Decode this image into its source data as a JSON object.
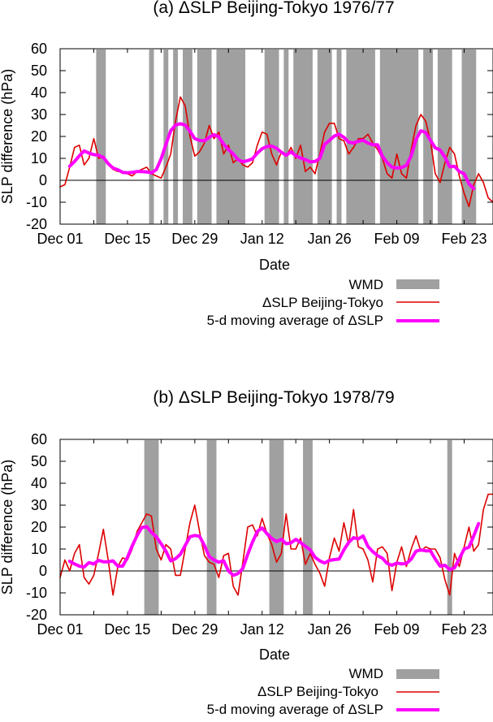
{
  "chart_data": [
    {
      "type": "line",
      "title": "(a) ΔSLP Beijing-Tokyo 1976/77",
      "xlabel": "Date",
      "ylabel": "SLP difference (hPa)",
      "xlim": [
        0,
        90
      ],
      "ylim": [
        -20,
        60
      ],
      "x_ticks": [
        {
          "x": 0,
          "label": "Dec 01"
        },
        {
          "x": 14,
          "label": "Dec 15"
        },
        {
          "x": 28,
          "label": "Dec 29"
        },
        {
          "x": 42,
          "label": "Jan 12"
        },
        {
          "x": 56,
          "label": "Jan 26"
        },
        {
          "x": 70,
          "label": "Feb 09"
        },
        {
          "x": 84,
          "label": "Feb 23"
        }
      ],
      "y_ticks": [
        -20,
        -10,
        0,
        10,
        20,
        30,
        40,
        50,
        60
      ],
      "zero_line": 0,
      "legend_position": "bottom-right",
      "legend": [
        {
          "label": "WMD",
          "color": "#a0a0a0",
          "kind": "bar"
        },
        {
          "label": "ΔSLP Beijing-Tokyo",
          "color": "#dd0000",
          "kind": "line"
        },
        {
          "label": "5-d moving average of ΔSLP",
          "color": "#ff00ff",
          "kind": "thick-line"
        }
      ],
      "wmd_shading": [
        [
          7.5,
          9.5
        ],
        [
          18.5,
          19.5
        ],
        [
          21.5,
          22.5
        ],
        [
          23.5,
          24.5
        ],
        [
          25.5,
          27.5
        ],
        [
          28.5,
          31.5
        ],
        [
          32.5,
          38.5
        ],
        [
          42.5,
          45.5
        ],
        [
          46.5,
          47.5
        ],
        [
          48.5,
          52.5
        ],
        [
          53.5,
          56.5
        ],
        [
          57.5,
          58.5
        ],
        [
          59.5,
          65.5
        ],
        [
          66.5,
          74.5
        ],
        [
          75.5,
          77.5
        ],
        [
          78.5,
          81.5
        ],
        [
          83.5,
          86.5
        ]
      ],
      "series": [
        {
          "name": "ΔSLP Beijing-Tokyo",
          "color": "#dd0000",
          "x": [
            0,
            1,
            2,
            3,
            4,
            5,
            6,
            7,
            8,
            9,
            10,
            11,
            12,
            13,
            14,
            15,
            16,
            17,
            18,
            19,
            20,
            21,
            22,
            23,
            24,
            25,
            26,
            27,
            28,
            29,
            30,
            31,
            32,
            33,
            34,
            35,
            36,
            37,
            38,
            39,
            40,
            41,
            42,
            43,
            44,
            45,
            46,
            47,
            48,
            49,
            50,
            51,
            52,
            53,
            54,
            55,
            56,
            57,
            58,
            59,
            60,
            61,
            62,
            63,
            64,
            65,
            66,
            67,
            68,
            69,
            70,
            71,
            72,
            73,
            74,
            75,
            76,
            77,
            78,
            79,
            80,
            81,
            82,
            83,
            84,
            85,
            86,
            87,
            88,
            89,
            90
          ],
          "y": [
            -3,
            -2,
            6,
            15,
            16,
            7,
            10,
            19,
            10,
            11,
            8,
            5,
            4,
            4,
            3,
            2,
            4,
            5,
            6,
            3,
            2,
            1,
            6,
            12,
            27,
            38,
            34,
            20,
            11,
            13,
            17,
            25,
            19,
            22,
            12,
            16,
            8,
            10,
            7,
            6,
            8,
            16,
            22,
            21,
            12,
            7,
            13,
            11,
            15,
            10,
            16,
            4,
            6,
            3,
            12,
            22,
            26,
            26,
            19,
            18,
            12,
            15,
            19,
            19,
            21,
            17,
            14,
            10,
            3,
            1,
            12,
            3,
            1,
            14,
            25,
            30,
            27,
            18,
            3,
            -1,
            8,
            15,
            12,
            2,
            -6,
            -12,
            -2,
            3,
            -1,
            -8,
            -10
          ]
        },
        {
          "name": "5-d moving average of ΔSLP",
          "color": "#ff00ff",
          "x": [
            2,
            3,
            4,
            5,
            6,
            7,
            8,
            9,
            10,
            11,
            12,
            13,
            14,
            15,
            16,
            17,
            18,
            19,
            20,
            21,
            22,
            23,
            24,
            25,
            26,
            27,
            28,
            29,
            30,
            31,
            32,
            33,
            34,
            35,
            36,
            37,
            38,
            39,
            40,
            41,
            42,
            43,
            44,
            45,
            46,
            47,
            48,
            49,
            50,
            51,
            52,
            53,
            54,
            55,
            56,
            57,
            58,
            59,
            60,
            61,
            62,
            63,
            64,
            65,
            66,
            67,
            68,
            69,
            70,
            71,
            72,
            73,
            74,
            75,
            76,
            77,
            78,
            79,
            80,
            81,
            82,
            83,
            84,
            85,
            86
          ],
          "y": [
            6.4,
            8.6,
            11.2,
            13.4,
            12.4,
            11.7,
            11.4,
            10.4,
            7.6,
            5.6,
            4.8,
            3.6,
            3.4,
            3.6,
            4.0,
            4.0,
            3.8,
            3.4,
            4.8,
            9.8,
            16.4,
            22.6,
            25.2,
            25.8,
            25.2,
            22.4,
            19.0,
            18.2,
            18.0,
            19.6,
            20.8,
            19.8,
            16.4,
            14.0,
            12.0,
            9.4,
            8.4,
            9.0,
            9.8,
            12.4,
            14.4,
            15.4,
            15.6,
            14.6,
            12.8,
            11.4,
            13.0,
            11.2,
            10.2,
            9.4,
            8.4,
            8.6,
            10.0,
            16.4,
            18.2,
            20.2,
            21.0,
            19.6,
            17.4,
            17.0,
            17.8,
            18.2,
            17.0,
            16.2,
            16.2,
            11.0,
            8.0,
            6.0,
            5.6,
            5.8,
            6.8,
            11.2,
            18.6,
            22.6,
            21.8,
            18.2,
            14.8,
            13.8,
            10.6,
            6.2,
            6.4,
            4.0,
            3.0,
            -1.6,
            -3.8
          ]
        }
      ]
    },
    {
      "type": "line",
      "title": "(b) ΔSLP Beijing-Tokyo 1978/79",
      "xlabel": "Date",
      "ylabel": "SLP difference (hPa)",
      "xlim": [
        0,
        90
      ],
      "ylim": [
        -20,
        60
      ],
      "x_ticks": [
        {
          "x": 0,
          "label": "Dec 01"
        },
        {
          "x": 14,
          "label": "Dec 15"
        },
        {
          "x": 28,
          "label": "Dec 29"
        },
        {
          "x": 42,
          "label": "Jan 12"
        },
        {
          "x": 56,
          "label": "Jan 26"
        },
        {
          "x": 70,
          "label": "Feb 09"
        },
        {
          "x": 84,
          "label": "Feb 23"
        }
      ],
      "y_ticks": [
        -20,
        -10,
        0,
        10,
        20,
        30,
        40,
        50,
        60
      ],
      "zero_line": 0,
      "legend_position": "bottom-right",
      "legend": [
        {
          "label": "WMD",
          "color": "#a0a0a0",
          "kind": "bar"
        },
        {
          "label": "ΔSLP Beijing-Tokyo",
          "color": "#dd0000",
          "kind": "line"
        },
        {
          "label": "5-d moving average of ΔSLP",
          "color": "#ff00ff",
          "kind": "thick-line"
        }
      ],
      "wmd_shading": [
        [
          17.5,
          20.5
        ],
        [
          30.5,
          32.5
        ],
        [
          43.5,
          46.5
        ],
        [
          50.5,
          52.5
        ],
        [
          80.5,
          81.5
        ]
      ],
      "series": [
        {
          "name": "ΔSLP Beijing-Tokyo",
          "color": "#dd0000",
          "x": [
            0,
            1,
            2,
            3,
            4,
            5,
            6,
            7,
            8,
            9,
            10,
            11,
            12,
            13,
            14,
            15,
            16,
            17,
            18,
            19,
            20,
            21,
            22,
            23,
            24,
            25,
            26,
            27,
            28,
            29,
            30,
            31,
            32,
            33,
            34,
            35,
            36,
            37,
            38,
            39,
            40,
            41,
            42,
            43,
            44,
            45,
            46,
            47,
            48,
            49,
            50,
            51,
            52,
            53,
            54,
            55,
            56,
            57,
            58,
            59,
            60,
            61,
            62,
            63,
            64,
            65,
            66,
            67,
            68,
            69,
            70,
            71,
            72,
            73,
            74,
            75,
            76,
            77,
            78,
            79,
            80,
            81,
            82,
            83,
            84,
            85,
            86,
            87,
            88,
            89,
            90
          ],
          "y": [
            -3,
            5,
            0,
            8,
            12,
            -3,
            -6,
            -2,
            8,
            19,
            5,
            -11,
            2,
            6,
            5,
            10,
            18,
            22,
            26,
            25,
            10,
            5,
            12,
            10,
            -2,
            -2,
            10,
            22,
            30,
            18,
            7,
            4,
            3,
            -3,
            7,
            8,
            -7,
            -11,
            4,
            20,
            21,
            16,
            24,
            17,
            12,
            4,
            8,
            26,
            10,
            10,
            15,
            3,
            8,
            3,
            -1,
            -7,
            6,
            15,
            9,
            22,
            12,
            28,
            11,
            10,
            5,
            -5,
            10,
            11,
            8,
            -9,
            4,
            11,
            2,
            10,
            16,
            9,
            11,
            10,
            10,
            6,
            -4,
            -11,
            8,
            2,
            11,
            20,
            9,
            12,
            28,
            35,
            35
          ]
        },
        {
          "name": "5-d moving average of ΔSLP",
          "color": "#ff00ff",
          "x": [
            2,
            3,
            4,
            5,
            6,
            7,
            8,
            9,
            10,
            11,
            12,
            13,
            14,
            15,
            16,
            17,
            18,
            19,
            20,
            21,
            22,
            23,
            24,
            25,
            26,
            27,
            28,
            29,
            30,
            31,
            32,
            33,
            34,
            35,
            36,
            37,
            38,
            39,
            40,
            41,
            42,
            43,
            44,
            45,
            46,
            47,
            48,
            49,
            50,
            51,
            52,
            53,
            54,
            55,
            56,
            57,
            58,
            59,
            60,
            61,
            62,
            63,
            64,
            65,
            66,
            67,
            68,
            69,
            70,
            71,
            72,
            73,
            74,
            75,
            76,
            77,
            78,
            79,
            80,
            81,
            82,
            83,
            84,
            85,
            86,
            87
          ],
          "y": [
            4.4,
            3.2,
            2.2,
            1.8,
            3.8,
            3.2,
            4.8,
            4.2,
            4.2,
            4.6,
            2.2,
            2.2,
            6.2,
            11.4,
            16.2,
            19.8,
            20.2,
            17.6,
            15.6,
            12.4,
            9.0,
            4.6,
            5.6,
            7.6,
            11.6,
            15.6,
            16.2,
            15.8,
            11.6,
            6.6,
            5.0,
            4.0,
            4.6,
            0.0,
            -2.0,
            -1.2,
            1.2,
            7.6,
            13.2,
            18.0,
            19.6,
            17.0,
            14.8,
            13.4,
            14.4,
            12.4,
            12.8,
            14.4,
            13.0,
            11.2,
            9.6,
            6.2,
            4.6,
            3.6,
            4.8,
            5.2,
            5.4,
            9.6,
            13.0,
            15.2,
            14.6,
            16.0,
            11.2,
            8.8,
            7.0,
            5.8,
            3.4,
            2.6,
            3.6,
            3.2,
            3.4,
            5.4,
            9.0,
            9.6,
            9.2,
            9.2,
            5.4,
            2.2,
            2.6,
            0.6,
            1.4,
            5.6,
            10.0,
            10.8,
            16.0,
            21.6
          ]
        }
      ]
    }
  ]
}
